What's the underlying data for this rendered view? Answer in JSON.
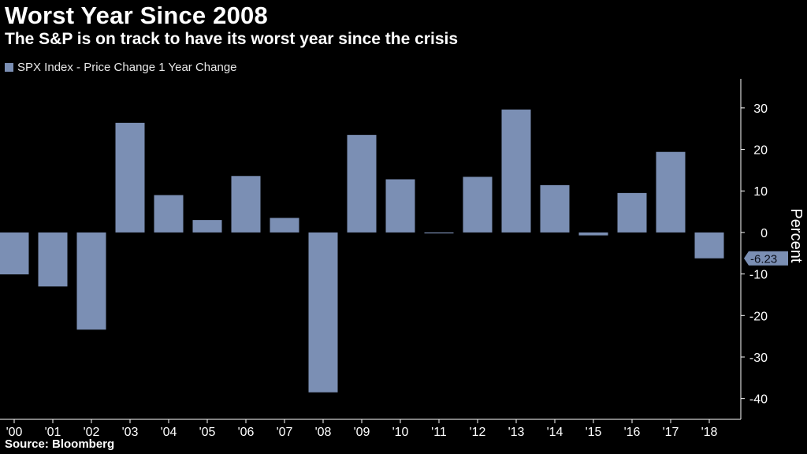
{
  "header": {
    "title": "Worst Year Since 2008",
    "subtitle": "The S&P is on track to have its worst year since the crisis"
  },
  "legend": {
    "label": "SPX Index - Price Change 1 Year Change"
  },
  "footer": {
    "source": "Source: Bloomberg"
  },
  "colors": {
    "background": "#000000",
    "bar": "#7b8fb4",
    "axis": "#ffffff",
    "text": "#ffffff"
  },
  "chart_data": {
    "type": "bar",
    "categories": [
      "'00",
      "'01",
      "'02",
      "'03",
      "'04",
      "'05",
      "'06",
      "'07",
      "'08",
      "'09",
      "'10",
      "'11",
      "'12",
      "'13",
      "'14",
      "'15",
      "'16",
      "'17",
      "'18"
    ],
    "series": [
      {
        "name": "SPX Index - Price Change 1 Year Change",
        "values": [
          -10.1,
          -13.0,
          -23.4,
          26.4,
          9.0,
          3.0,
          13.6,
          3.5,
          -38.5,
          23.5,
          12.8,
          0.0,
          13.4,
          29.6,
          11.4,
          -0.7,
          9.5,
          19.4,
          -6.23
        ]
      }
    ],
    "ylabel": "Percent",
    "yticks": [
      30,
      20,
      10,
      0,
      -10,
      -20,
      -30,
      -40
    ],
    "ylim": [
      -45,
      37
    ],
    "axis_position": "right",
    "last_value_label": "-6.23",
    "grid": false,
    "legend_position": "top-left"
  }
}
